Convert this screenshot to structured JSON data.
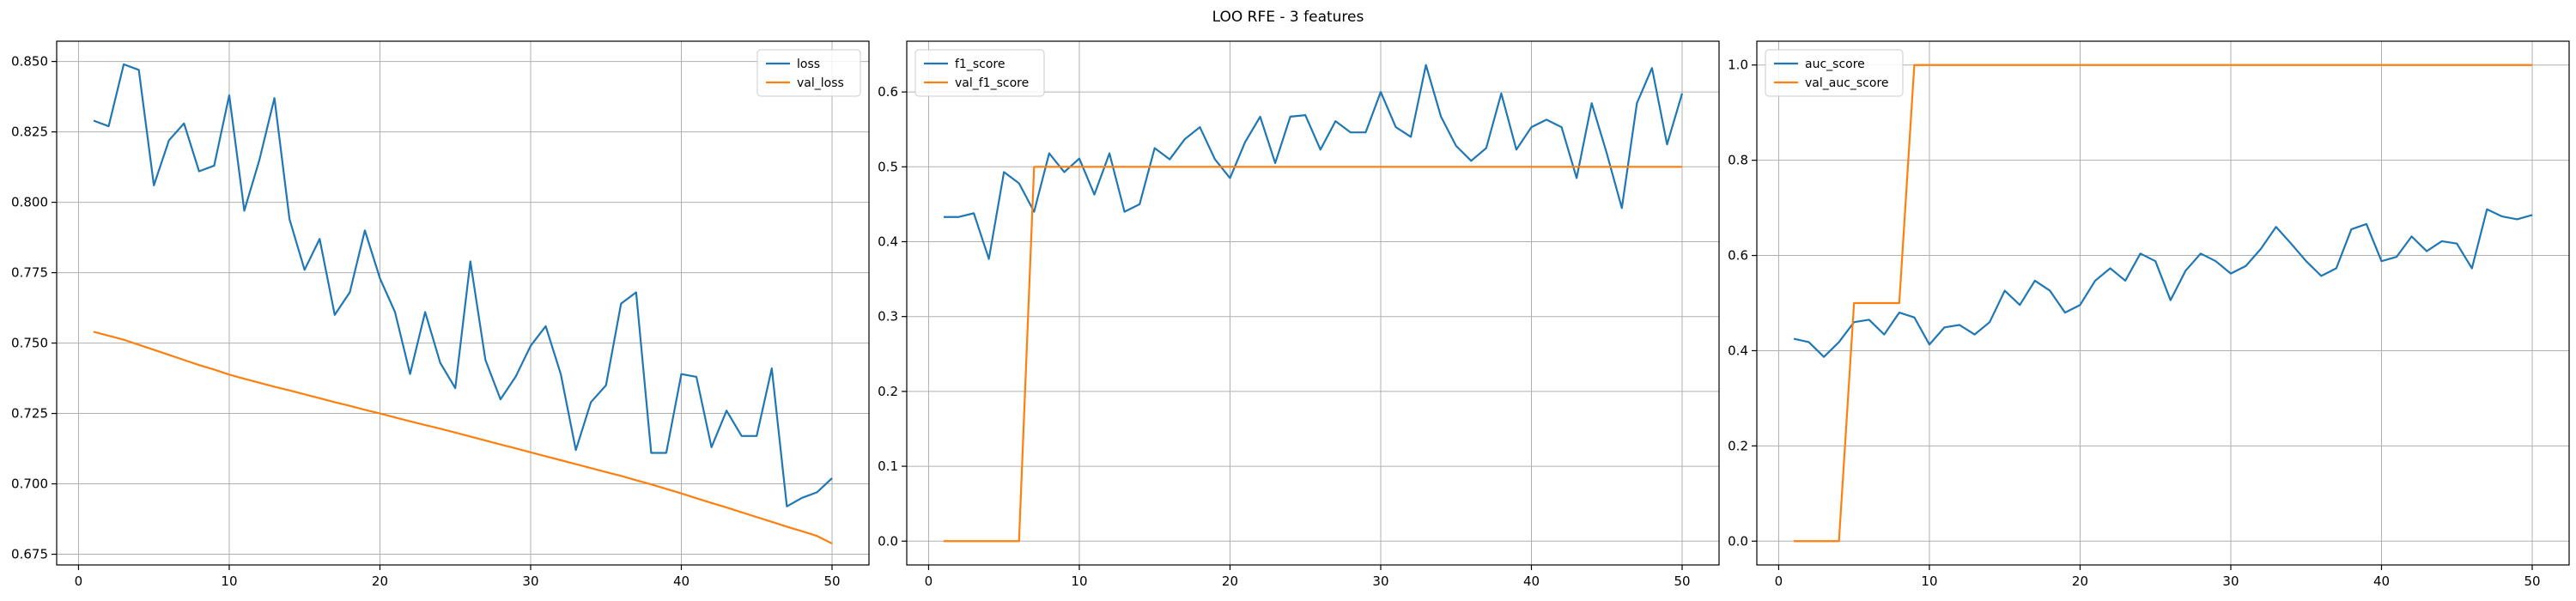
{
  "figure": {
    "title": "LOO RFE - 3 features"
  },
  "colors": {
    "train": "#1f77b4",
    "val": "#ff7f0e",
    "grid": "#b0b0b0",
    "axis": "#000000"
  },
  "chart_data": [
    {
      "type": "line",
      "title": "",
      "xlabel": "",
      "ylabel": "",
      "xlim": [
        -1.45,
        52.45
      ],
      "ylim": [
        0.6712,
        0.8572
      ],
      "xticks": [
        0,
        10,
        20,
        30,
        40,
        50
      ],
      "xtick_labels": [
        "0",
        "10",
        "20",
        "30",
        "40",
        "50"
      ],
      "yticks": [
        0.675,
        0.7,
        0.725,
        0.75,
        0.775,
        0.8,
        0.825,
        0.85
      ],
      "ytick_labels": [
        "0.675",
        "0.700",
        "0.725",
        "0.750",
        "0.775",
        "0.800",
        "0.825",
        "0.850"
      ],
      "grid": true,
      "legend_position": "upper right",
      "x": [
        1,
        2,
        3,
        4,
        5,
        6,
        7,
        8,
        9,
        10,
        11,
        12,
        13,
        14,
        15,
        16,
        17,
        18,
        19,
        20,
        21,
        22,
        23,
        24,
        25,
        26,
        27,
        28,
        29,
        30,
        31,
        32,
        33,
        34,
        35,
        36,
        37,
        38,
        39,
        40,
        41,
        42,
        43,
        44,
        45,
        46,
        47,
        48,
        49,
        50
      ],
      "series": [
        {
          "name": "loss",
          "color": "#1f77b4",
          "values": [
            0.829,
            0.827,
            0.849,
            0.847,
            0.806,
            0.822,
            0.828,
            0.811,
            0.813,
            0.838,
            0.797,
            0.815,
            0.837,
            0.794,
            0.776,
            0.787,
            0.76,
            0.768,
            0.79,
            0.773,
            0.761,
            0.739,
            0.761,
            0.743,
            0.734,
            0.779,
            0.744,
            0.73,
            0.738,
            0.749,
            0.756,
            0.739,
            0.712,
            0.729,
            0.735,
            0.764,
            0.768,
            0.711,
            0.711,
            0.739,
            0.738,
            0.713,
            0.726,
            0.717,
            0.717,
            0.741,
            0.692,
            0.695,
            0.697,
            0.702
          ]
        },
        {
          "name": "val_loss",
          "color": "#ff7f0e",
          "values": [
            0.754,
            0.7526,
            0.7512,
            0.7494,
            0.7476,
            0.7458,
            0.744,
            0.7422,
            0.7406,
            0.7388,
            0.7373,
            0.7359,
            0.7345,
            0.7332,
            0.7318,
            0.7304,
            0.729,
            0.7277,
            0.7263,
            0.725,
            0.7236,
            0.7222,
            0.7209,
            0.7196,
            0.7182,
            0.7168,
            0.7154,
            0.714,
            0.7126,
            0.7112,
            0.7098,
            0.7084,
            0.707,
            0.7056,
            0.7042,
            0.7028,
            0.7013,
            0.6998,
            0.6982,
            0.6966,
            0.6949,
            0.6932,
            0.6916,
            0.6899,
            0.6882,
            0.6865,
            0.6848,
            0.6832,
            0.6815,
            0.6788
          ]
        }
      ]
    },
    {
      "type": "line",
      "title": "",
      "xlabel": "",
      "ylabel": "",
      "xlim": [
        -1.45,
        52.45
      ],
      "ylim": [
        -0.0318,
        0.6678
      ],
      "xticks": [
        0,
        10,
        20,
        30,
        40,
        50
      ],
      "xtick_labels": [
        "0",
        "10",
        "20",
        "30",
        "40",
        "50"
      ],
      "yticks": [
        0.0,
        0.1,
        0.2,
        0.3,
        0.4,
        0.5,
        0.6
      ],
      "ytick_labels": [
        "0.0",
        "0.1",
        "0.2",
        "0.3",
        "0.4",
        "0.5",
        "0.6"
      ],
      "grid": true,
      "legend_position": "upper left",
      "x": [
        1,
        2,
        3,
        4,
        5,
        6,
        7,
        8,
        9,
        10,
        11,
        12,
        13,
        14,
        15,
        16,
        17,
        18,
        19,
        20,
        21,
        22,
        23,
        24,
        25,
        26,
        27,
        28,
        29,
        30,
        31,
        32,
        33,
        34,
        35,
        36,
        37,
        38,
        39,
        40,
        41,
        42,
        43,
        44,
        45,
        46,
        47,
        48,
        49,
        50
      ],
      "series": [
        {
          "name": "f1_score",
          "color": "#1f77b4",
          "values": [
            0.433,
            0.433,
            0.438,
            0.377,
            0.493,
            0.478,
            0.44,
            0.518,
            0.493,
            0.511,
            0.463,
            0.518,
            0.44,
            0.45,
            0.525,
            0.51,
            0.537,
            0.553,
            0.51,
            0.485,
            0.533,
            0.567,
            0.505,
            0.567,
            0.569,
            0.523,
            0.561,
            0.546,
            0.546,
            0.6,
            0.553,
            0.54,
            0.636,
            0.567,
            0.528,
            0.508,
            0.525,
            0.598,
            0.523,
            0.553,
            0.563,
            0.553,
            0.485,
            0.585,
            0.518,
            0.445,
            0.585,
            0.632,
            0.53,
            0.598
          ]
        },
        {
          "name": "val_f1_score",
          "color": "#ff7f0e",
          "values": [
            0,
            0,
            0,
            0,
            0,
            0,
            0.5,
            0.5,
            0.5,
            0.5,
            0.5,
            0.5,
            0.5,
            0.5,
            0.5,
            0.5,
            0.5,
            0.5,
            0.5,
            0.5,
            0.5,
            0.5,
            0.5,
            0.5,
            0.5,
            0.5,
            0.5,
            0.5,
            0.5,
            0.5,
            0.5,
            0.5,
            0.5,
            0.5,
            0.5,
            0.5,
            0.5,
            0.5,
            0.5,
            0.5,
            0.5,
            0.5,
            0.5,
            0.5,
            0.5,
            0.5,
            0.5,
            0.5,
            0.5,
            0.5
          ]
        }
      ]
    },
    {
      "type": "line",
      "title": "",
      "xlabel": "",
      "ylabel": "",
      "xlim": [
        -1.45,
        52.45
      ],
      "ylim": [
        -0.05,
        1.05
      ],
      "xticks": [
        0,
        10,
        20,
        30,
        40,
        50
      ],
      "xtick_labels": [
        "0",
        "10",
        "20",
        "30",
        "40",
        "50"
      ],
      "yticks": [
        0.0,
        0.2,
        0.4,
        0.6,
        0.8,
        1.0
      ],
      "ytick_labels": [
        "0.0",
        "0.2",
        "0.4",
        "0.6",
        "0.8",
        "1.0"
      ],
      "grid": true,
      "legend_position": "upper left",
      "x": [
        1,
        2,
        3,
        4,
        5,
        6,
        7,
        8,
        9,
        10,
        11,
        12,
        13,
        14,
        15,
        16,
        17,
        18,
        19,
        20,
        21,
        22,
        23,
        24,
        25,
        26,
        27,
        28,
        29,
        30,
        31,
        32,
        33,
        34,
        35,
        36,
        37,
        38,
        39,
        40,
        41,
        42,
        43,
        44,
        45,
        46,
        47,
        48,
        49,
        50
      ],
      "series": [
        {
          "name": "auc_score",
          "color": "#1f77b4",
          "values": [
            0.425,
            0.418,
            0.387,
            0.418,
            0.46,
            0.465,
            0.434,
            0.48,
            0.47,
            0.413,
            0.449,
            0.454,
            0.434,
            0.46,
            0.526,
            0.496,
            0.547,
            0.526,
            0.48,
            0.496,
            0.547,
            0.573,
            0.547,
            0.604,
            0.588,
            0.506,
            0.568,
            0.604,
            0.588,
            0.562,
            0.578,
            0.614,
            0.66,
            0.625,
            0.588,
            0.557,
            0.573,
            0.655,
            0.666,
            0.588,
            0.597,
            0.64,
            0.609,
            0.63,
            0.625,
            0.573,
            0.697,
            0.682,
            0.676,
            0.685
          ]
        },
        {
          "name": "val_auc_score",
          "color": "#ff7f0e",
          "values": [
            0,
            0,
            0,
            0,
            0.5,
            0.5,
            0.5,
            0.5,
            1,
            1,
            1,
            1,
            1,
            1,
            1,
            1,
            1,
            1,
            1,
            1,
            1,
            1,
            1,
            1,
            1,
            1,
            1,
            1,
            1,
            1,
            1,
            1,
            1,
            1,
            1,
            1,
            1,
            1,
            1,
            1,
            1,
            1,
            1,
            1,
            1,
            1,
            1,
            1,
            1,
            1
          ]
        }
      ]
    }
  ]
}
